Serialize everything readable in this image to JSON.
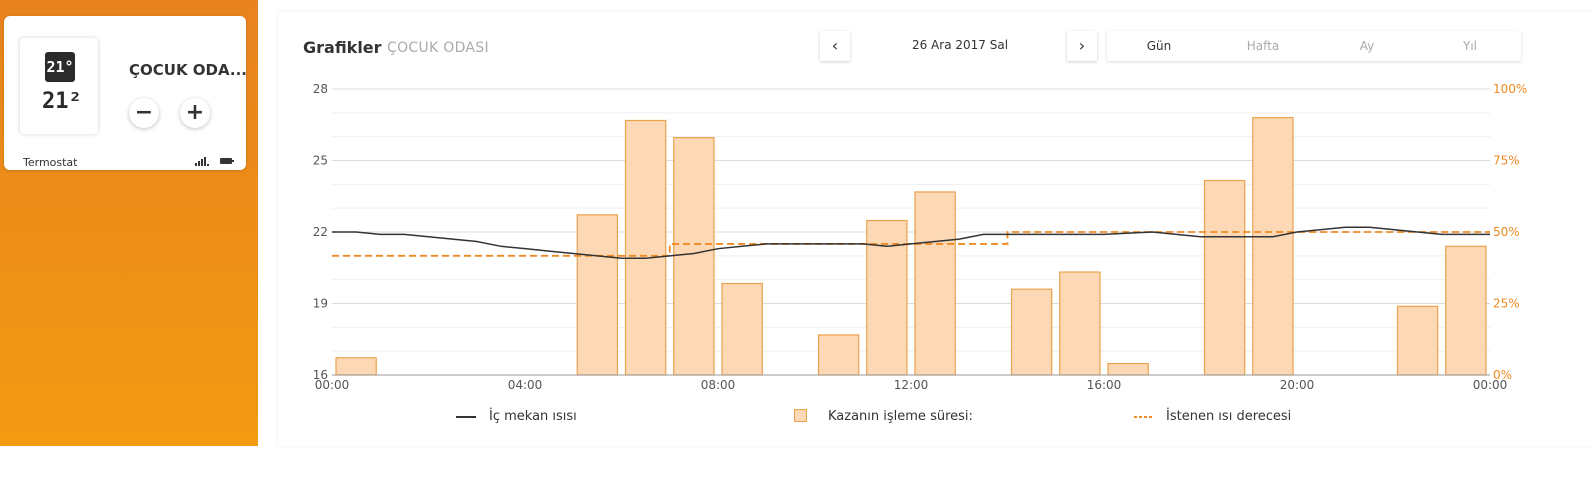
{
  "device": {
    "name": "ÇOCUK ODA...",
    "display_top": "21°",
    "display_bottom": "21²",
    "label": "Termostat",
    "minus": "−",
    "plus": "+"
  },
  "header": {
    "title": "Grafikler",
    "room": "ÇOCUK ODASI",
    "date": "26 Ara 2017 Sal",
    "prev": "‹",
    "next": "›",
    "tabs": [
      "Gün",
      "Hafta",
      "Ay",
      "Yıl"
    ],
    "active_tab": "Gün"
  },
  "legend": {
    "indoor": "İç mekan ısısı",
    "boiler": "Kazanın işleme süresi:",
    "setpoint": "İstenen ısı derecesi"
  },
  "colors": {
    "accent": "#f08a24",
    "bar_fill": "#fdd8b4",
    "bar_stroke": "#e9a24e",
    "line": "#333333",
    "setpoint": "#f08a24"
  },
  "chart_data": {
    "type": "bar",
    "x_ticks": [
      "00:00",
      "04:00",
      "08:00",
      "12:00",
      "16:00",
      "20:00",
      "00:00"
    ],
    "y_left_ticks": [
      "16",
      "19",
      "22",
      "25",
      "28"
    ],
    "y_right_ticks": [
      "0%",
      "25%",
      "50%",
      "75%",
      "100%"
    ],
    "ylim_left": [
      16,
      28
    ],
    "ylim_right": [
      0,
      100
    ],
    "xlim_hours": [
      0,
      24
    ],
    "bars": {
      "name": "Kazanın işleme süresi:",
      "hours": [
        0,
        5,
        6,
        7,
        8,
        10,
        11,
        12,
        14,
        15,
        16,
        18,
        19,
        22,
        23
      ],
      "values": [
        6,
        56,
        89,
        83,
        32,
        14,
        54,
        64,
        30,
        36,
        4,
        68,
        90,
        24,
        45
      ]
    },
    "indoor_temp": {
      "name": "İç mekan ısısı",
      "points": [
        [
          0,
          22.0
        ],
        [
          0.5,
          22.0
        ],
        [
          1,
          21.9
        ],
        [
          1.5,
          21.9
        ],
        [
          2,
          21.8
        ],
        [
          2.5,
          21.7
        ],
        [
          3,
          21.6
        ],
        [
          3.5,
          21.4
        ],
        [
          4,
          21.3
        ],
        [
          4.5,
          21.2
        ],
        [
          5,
          21.1
        ],
        [
          5.5,
          21.0
        ],
        [
          6,
          20.9
        ],
        [
          6.5,
          20.9
        ],
        [
          7,
          21.0
        ],
        [
          7.5,
          21.1
        ],
        [
          8,
          21.3
        ],
        [
          8.5,
          21.4
        ],
        [
          9,
          21.5
        ],
        [
          10,
          21.5
        ],
        [
          11,
          21.5
        ],
        [
          11.5,
          21.4
        ],
        [
          12,
          21.5
        ],
        [
          12.5,
          21.6
        ],
        [
          13,
          21.7
        ],
        [
          13.5,
          21.9
        ],
        [
          14,
          21.9
        ],
        [
          15,
          21.9
        ],
        [
          16,
          21.9
        ],
        [
          17,
          22.0
        ],
        [
          18,
          21.8
        ],
        [
          19,
          21.8
        ],
        [
          19.5,
          21.8
        ],
        [
          20,
          22.0
        ],
        [
          20.5,
          22.1
        ],
        [
          21,
          22.2
        ],
        [
          21.5,
          22.2
        ],
        [
          22,
          22.1
        ],
        [
          22.5,
          22.0
        ],
        [
          23,
          21.9
        ],
        [
          24,
          21.9
        ]
      ]
    },
    "setpoint": {
      "name": "İstenen ısı derecesi",
      "steps": [
        [
          0,
          21.0
        ],
        [
          7,
          21.5
        ],
        [
          14,
          22.0
        ],
        [
          24,
          22.0
        ]
      ]
    }
  }
}
